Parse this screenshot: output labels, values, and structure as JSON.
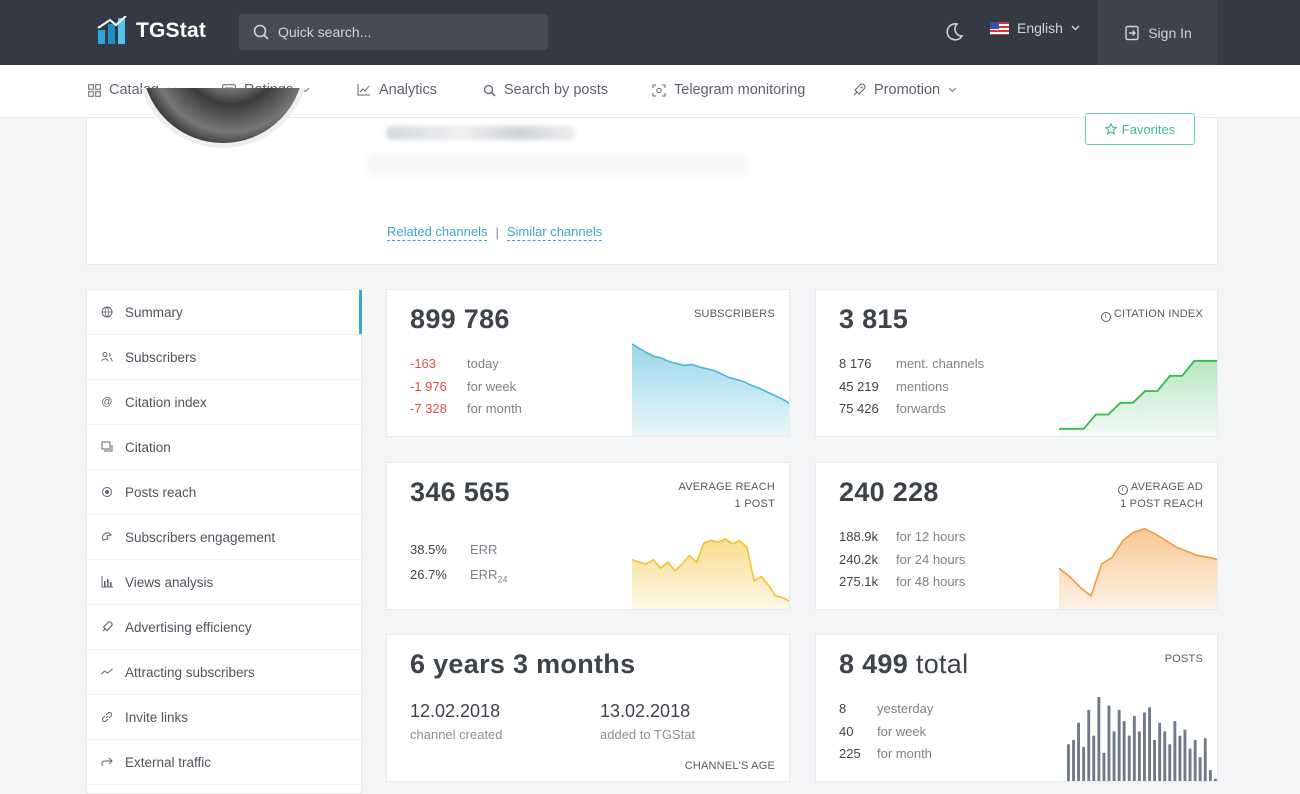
{
  "header": {
    "logo_text": "TGStat",
    "search_placeholder": "Quick search...",
    "language": "English",
    "sign_in": "Sign In"
  },
  "nav": {
    "catalog": "Catalog",
    "ratings": "Ratings",
    "analytics": "Analytics",
    "search_posts": "Search by posts",
    "monitoring": "Telegram monitoring",
    "promotion": "Promotion"
  },
  "profile": {
    "favorites": "Favorites",
    "related": "Related channels",
    "similar": "Similar channels",
    "separator": "|"
  },
  "sidebar": {
    "items": [
      {
        "label": "Summary",
        "icon": "globe-icon"
      },
      {
        "label": "Subscribers",
        "icon": "users-icon"
      },
      {
        "label": "Citation index",
        "icon": "at-icon"
      },
      {
        "label": "Citation",
        "icon": "quote-icon"
      },
      {
        "label": "Posts reach",
        "icon": "eye-icon"
      },
      {
        "label": "Subscribers engagement",
        "icon": "engagement-icon"
      },
      {
        "label": "Views analysis",
        "icon": "bar-chart-icon"
      },
      {
        "label": "Advertising efficiency",
        "icon": "rocket-icon"
      },
      {
        "label": "Attracting subscribers",
        "icon": "trend-icon"
      },
      {
        "label": "Invite links",
        "icon": "link-icon"
      },
      {
        "label": "External traffic",
        "icon": "share-icon"
      }
    ]
  },
  "cards": {
    "subscribers": {
      "value": "899 786",
      "label": "SUBSCRIBERS",
      "rows": [
        {
          "v": "-163",
          "d": "today"
        },
        {
          "v": "-1 976",
          "d": "for week"
        },
        {
          "v": "-7 328",
          "d": "for month"
        }
      ],
      "color": "#47b6d6",
      "trend": [
        1.0,
        0.95,
        0.9,
        0.86,
        0.84,
        0.8,
        0.78,
        0.76,
        0.77,
        0.74,
        0.72,
        0.7,
        0.66,
        0.62,
        0.6,
        0.57,
        0.53,
        0.5,
        0.46,
        0.42,
        0.38,
        0.33
      ]
    },
    "citation": {
      "value": "3 815",
      "label": "CITATION INDEX",
      "rows": [
        {
          "v": "8 176",
          "d": "ment. channels"
        },
        {
          "v": "45 219",
          "d": "mentions"
        },
        {
          "v": "75 426",
          "d": "forwards"
        }
      ],
      "color": "#34b94f",
      "steps": [
        0.05,
        0.05,
        0.05,
        0.22,
        0.22,
        0.36,
        0.36,
        0.5,
        0.5,
        0.68,
        0.68,
        0.86,
        0.86,
        0.86
      ]
    },
    "reach": {
      "value": "346 565",
      "label": "AVERAGE REACH",
      "label2": "1 POST",
      "rows": [
        {
          "v": "38.5%",
          "d": "ERR"
        },
        {
          "v": "26.7%",
          "d": "ERR"
        }
      ],
      "sub24": "24",
      "color": "#f2c232",
      "trend": [
        0.55,
        0.52,
        0.5,
        0.55,
        0.45,
        0.52,
        0.42,
        0.5,
        0.6,
        0.52,
        0.75,
        0.78,
        0.76,
        0.8,
        0.74,
        0.78,
        0.7,
        0.3,
        0.35,
        0.25,
        0.12,
        0.1,
        0.05
      ]
    },
    "ad": {
      "value": "240 228",
      "label": "AVERAGE AD",
      "label2": "1 POST REACH",
      "rows": [
        {
          "v": "188.9k",
          "d": "for 12 hours"
        },
        {
          "v": "240.2k",
          "d": "for 24 hours"
        },
        {
          "v": "275.1k",
          "d": "for 48 hours"
        }
      ],
      "color": "#f29a3a",
      "trend": [
        0.45,
        0.35,
        0.22,
        0.12,
        0.5,
        0.58,
        0.78,
        0.88,
        0.92,
        0.86,
        0.78,
        0.7,
        0.65,
        0.6,
        0.58,
        0.55
      ]
    },
    "age": {
      "value": "6 years 3 months",
      "created_date": "12.02.2018",
      "created_label": "channel created",
      "added_date": "13.02.2018",
      "added_label": "added to TGStat",
      "label": "CHANNEL'S AGE"
    },
    "posts": {
      "value": "8 499",
      "unit": "total",
      "label": "POSTS",
      "rows": [
        {
          "v": "8",
          "d": "yesterday"
        },
        {
          "v": "40",
          "d": "for week"
        },
        {
          "v": "225",
          "d": "for month"
        }
      ],
      "color": "#6f7a8b",
      "bars": [
        0.45,
        0.5,
        0.7,
        0.42,
        0.85,
        0.55,
        1.0,
        0.35,
        0.9,
        0.6,
        0.85,
        0.72,
        0.55,
        0.78,
        0.6,
        0.82,
        0.88,
        0.5,
        0.7,
        0.6,
        0.45,
        0.72,
        0.55,
        0.62,
        0.4,
        0.5,
        0.3,
        0.52,
        0.15,
        0.05
      ]
    }
  }
}
